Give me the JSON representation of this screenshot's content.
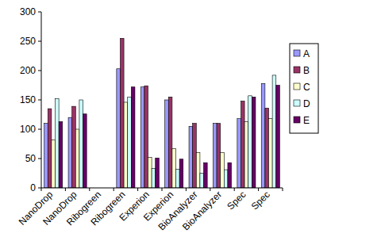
{
  "chart_data": {
    "type": "bar",
    "categories": [
      "NanoDrop",
      "NanoDrop",
      "Ribogreen",
      "Ribogreen",
      "Experion",
      "Experion",
      "BioAnalyzer",
      "BioAnalyzer",
      "Spec",
      "Spec"
    ],
    "series": [
      {
        "name": "A",
        "color": "#9999ff",
        "values": [
          110,
          120,
          null,
          203,
          172,
          150,
          105,
          110,
          118,
          178
        ]
      },
      {
        "name": "B",
        "color": "#993366",
        "values": [
          135,
          139,
          null,
          255,
          174,
          155,
          110,
          110,
          148,
          136
        ]
      },
      {
        "name": "C",
        "color": "#ffffcc",
        "values": [
          82,
          100,
          null,
          146,
          52,
          67,
          60,
          60,
          113,
          118
        ]
      },
      {
        "name": "D",
        "color": "#ccffff",
        "values": [
          152,
          150,
          null,
          155,
          33,
          32,
          25,
          31,
          157,
          192
        ]
      },
      {
        "name": "E",
        "color": "#660066",
        "values": [
          113,
          126,
          null,
          172,
          51,
          49,
          43,
          43,
          155,
          175
        ]
      }
    ],
    "ylim": [
      0,
      300
    ],
    "yticks": [
      0,
      50,
      100,
      150,
      200,
      250,
      300
    ],
    "grid": false,
    "legend": "right"
  }
}
